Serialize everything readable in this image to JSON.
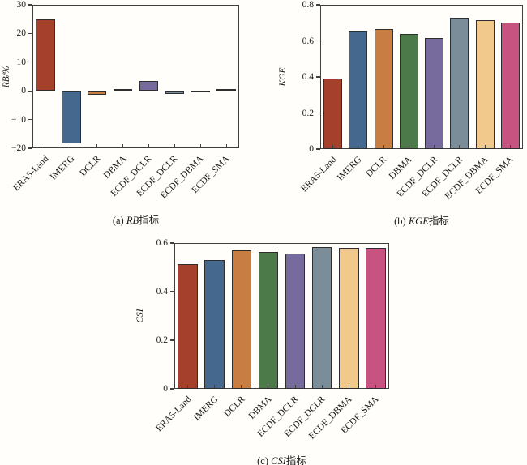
{
  "figure": {
    "background": "#fffefa",
    "edge_color": "#2e2e2e",
    "spine_color": "#3f3f3f",
    "palette": [
      "#a5402d",
      "#45688e",
      "#c87d42",
      "#4c7a48",
      "#776b9d",
      "#7a8d98",
      "#f2c98c",
      "#c75380"
    ],
    "categories": [
      "ERA5-Land",
      "IMERG",
      "DCLR",
      "DBMA",
      "ECDF_DCLR",
      "ECDF_DCLR",
      "ECDF_DBMA",
      "ECDF_SMA"
    ]
  },
  "chart_data": [
    {
      "type": "bar",
      "id": "rb",
      "title": "(a) RB指标",
      "caption": {
        "prefix": "(a) ",
        "metric": "RB",
        "suffix": "指标"
      },
      "ylabel": "RB/%",
      "categories": [
        "ERA5-Land",
        "IMERG",
        "DCLR",
        "DBMA",
        "ECDF_DCLR",
        "ECDF_DCLR",
        "ECDF_DBMA",
        "ECDF_SMA"
      ],
      "values": [
        24.8,
        -18.2,
        -1.5,
        0.5,
        3.6,
        -1.2,
        -0.5,
        0.5
      ],
      "ylim": [
        -20,
        30
      ],
      "yticks": [
        30,
        20,
        10,
        0,
        -10,
        -20
      ],
      "yticklabels": [
        "30",
        "20",
        "10",
        "0",
        "−10",
        "−20"
      ],
      "grid": false,
      "legend": null
    },
    {
      "type": "bar",
      "id": "kge",
      "title": "(b) KGE指标",
      "caption": {
        "prefix": "(b) ",
        "metric": "KGE",
        "suffix": "指标"
      },
      "ylabel": "KGE",
      "categories": [
        "ERA5-Land",
        "IMERG",
        "DCLR",
        "DBMA",
        "ECDF_DCLR",
        "ECDF_DCLR",
        "ECDF_DBMA",
        "ECDF_SMA"
      ],
      "values": [
        0.39,
        0.655,
        0.665,
        0.64,
        0.615,
        0.73,
        0.715,
        0.7
      ],
      "ylim": [
        0,
        0.8
      ],
      "yticks": [
        0.8,
        0.6,
        0.4,
        0.2,
        0
      ],
      "yticklabels": [
        "0.8",
        "0.6",
        "0.4",
        "0.2",
        "0"
      ],
      "grid": false,
      "legend": null
    },
    {
      "type": "bar",
      "id": "csi",
      "title": "(c) CSI指标",
      "caption": {
        "prefix": "(c) ",
        "metric": "CSI",
        "suffix": "指标"
      },
      "ylabel": "CSI",
      "categories": [
        "ERA5-Land",
        "IMERG",
        "DCLR",
        "DBMA",
        "ECDF_DCLR",
        "ECDF_DCLR",
        "ECDF_DBMA",
        "ECDF_SMA"
      ],
      "values": [
        0.515,
        0.53,
        0.57,
        0.565,
        0.558,
        0.582,
        0.58,
        0.58
      ],
      "ylim": [
        0,
        0.6
      ],
      "yticks": [
        0.6,
        0.4,
        0.2,
        0
      ],
      "yticklabels": [
        "0.6",
        "0.4",
        "0.2",
        "0"
      ],
      "grid": false,
      "legend": null
    }
  ]
}
